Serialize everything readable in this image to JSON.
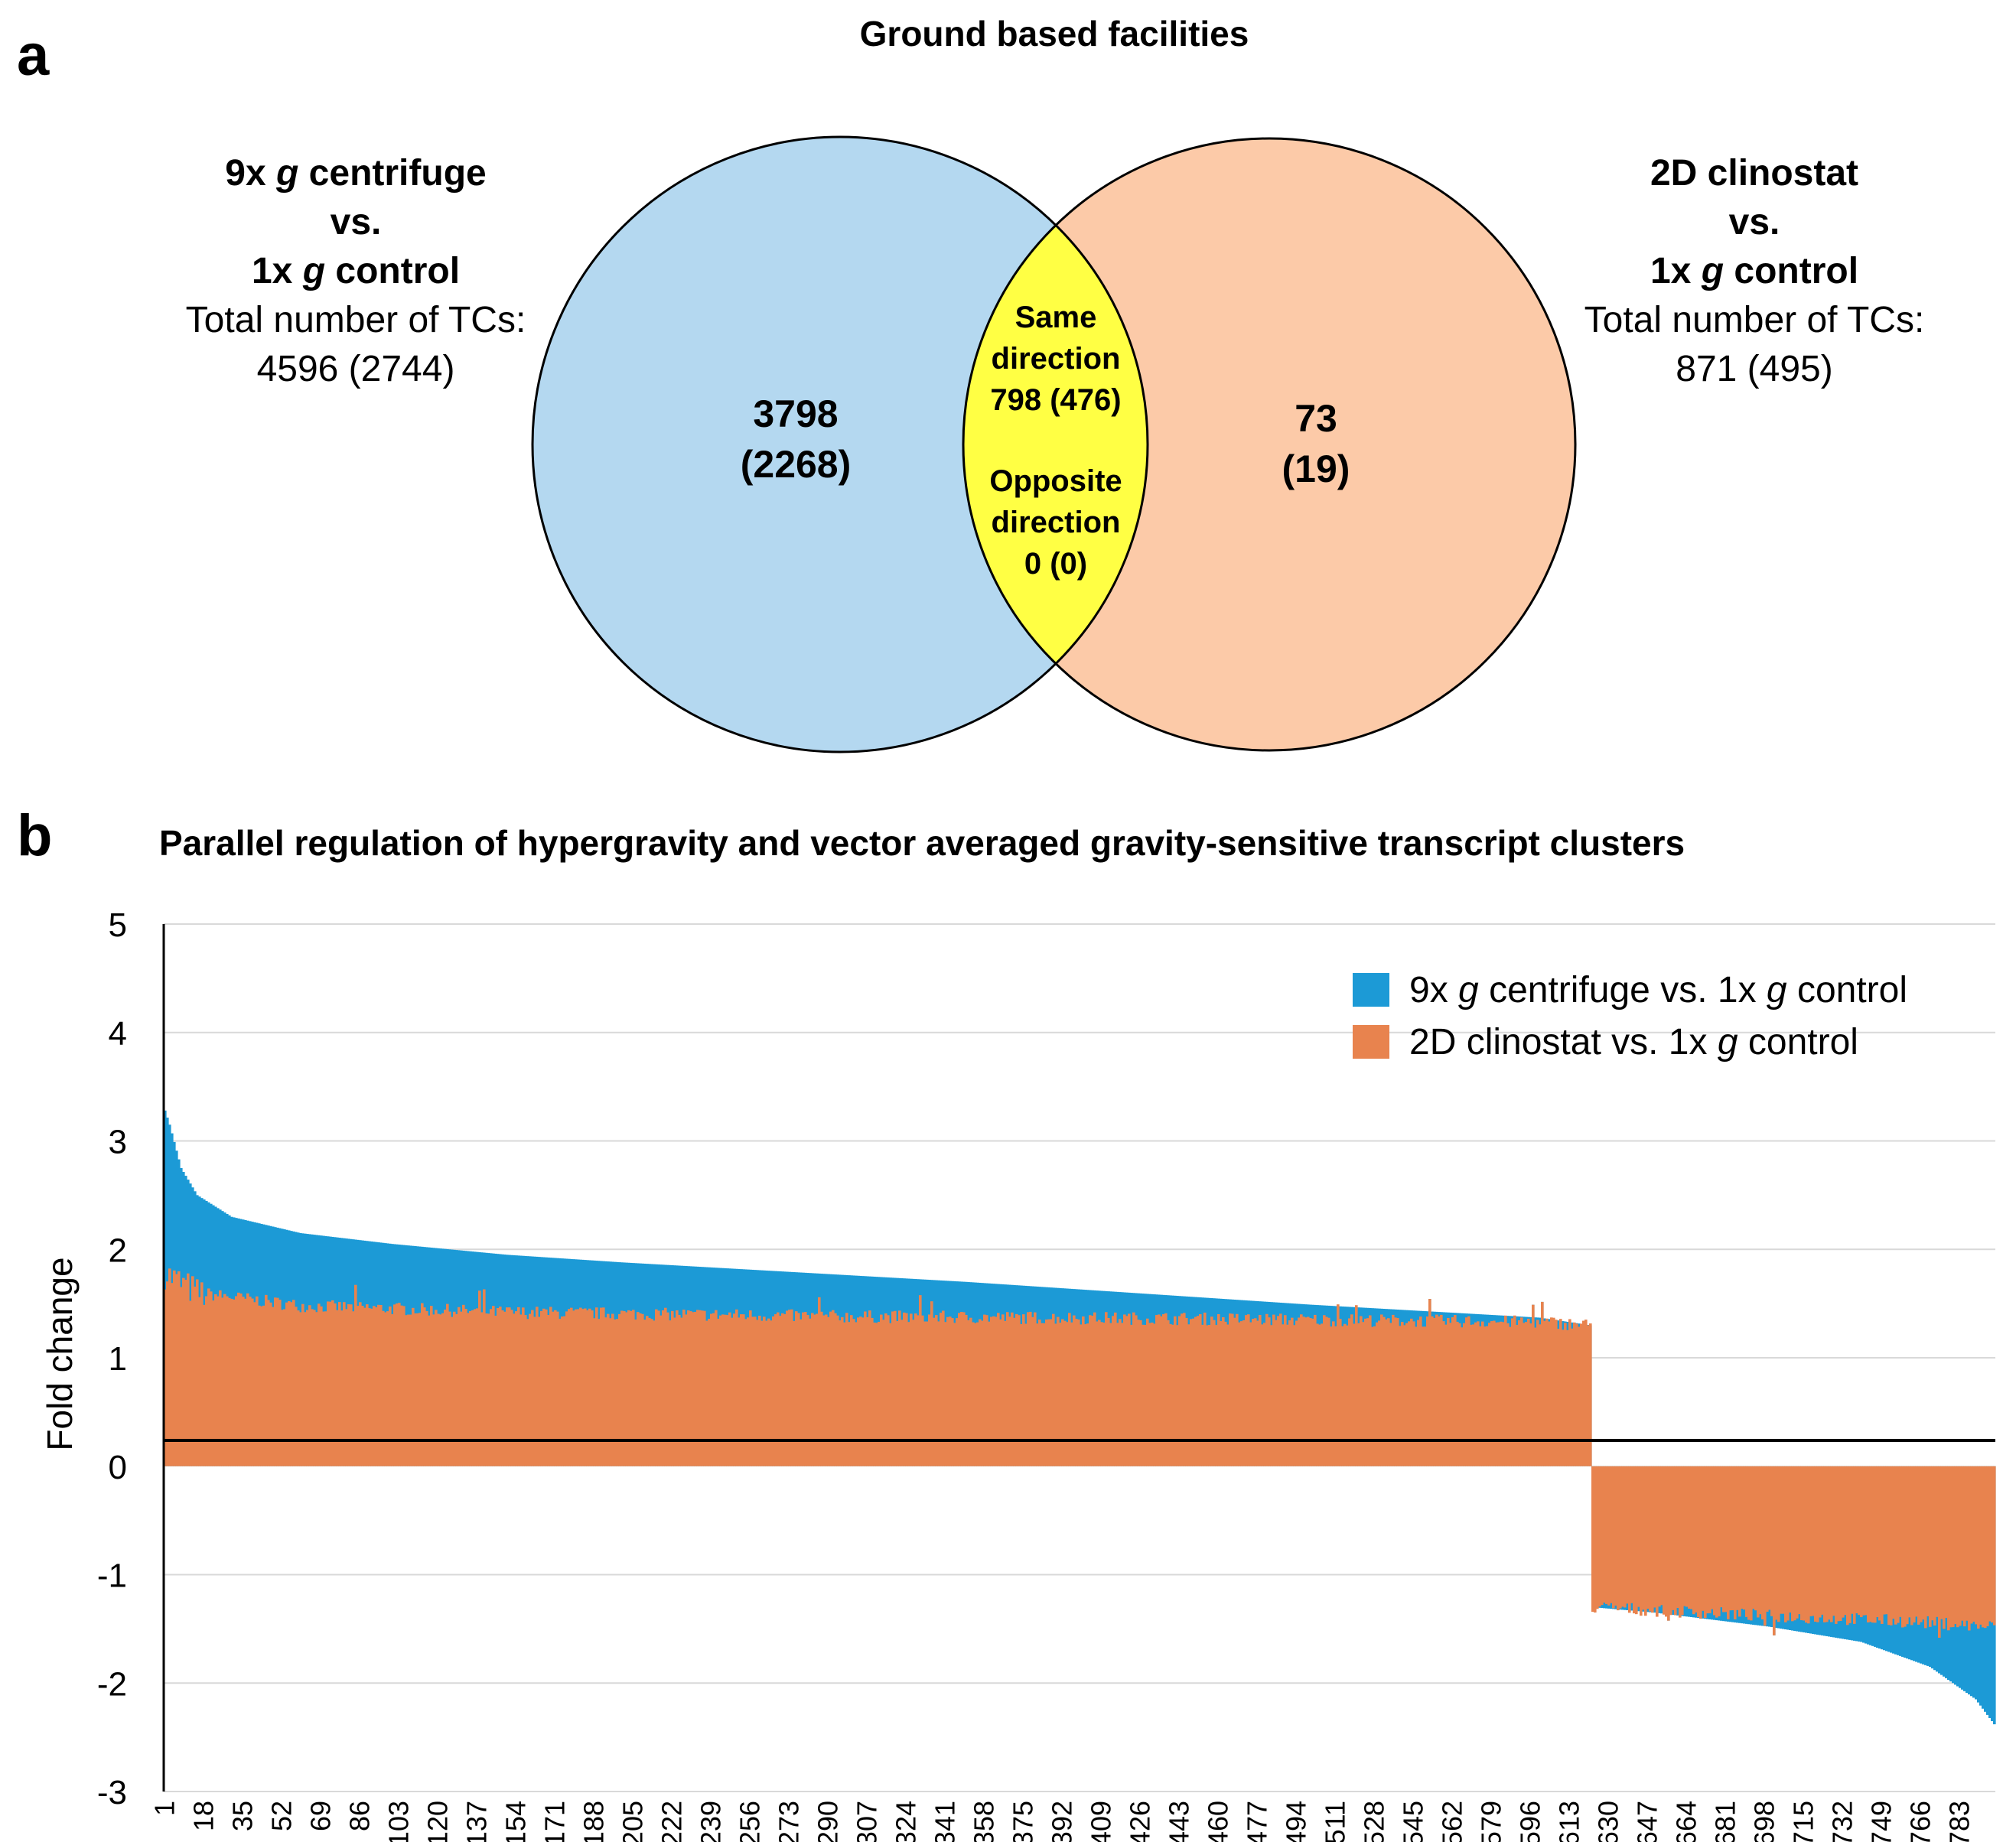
{
  "panel_a": {
    "letter": "a",
    "title": "Ground based facilities",
    "left_set": {
      "line1_pre": "9x ",
      "line1_g": "g",
      "line1_post": " centrifuge",
      "line2": "vs.",
      "line3_pre": "1x ",
      "line3_g": "g",
      "line3_post": " control",
      "total_label": "Total number of TCs:",
      "total_value": "4596 (2744)",
      "unique_count": "3798",
      "unique_count_paren": "(2268)",
      "color": "#b4d8f0"
    },
    "right_set": {
      "line1": "2D clinostat",
      "line2": "vs.",
      "line3_pre": "1x ",
      "line3_g": "g",
      "line3_post": " control",
      "total_label": "Total number of TCs:",
      "total_value": "871 (495)",
      "unique_count": "73",
      "unique_count_paren": "(19)",
      "color": "#fccaa8"
    },
    "overlap": {
      "same_line1": "Same",
      "same_line2": "direction",
      "same_value": "798 (476)",
      "opp_line1": "Opposite",
      "opp_line2": "direction",
      "opp_value": "0 (0)",
      "color": "#ffff44"
    }
  },
  "panel_b": {
    "letter": "b",
    "title": "Parallel regulation of hypergravity and vector averaged gravity-sensitive transcript clusters"
  },
  "chart_data": {
    "type": "bar",
    "title": "Parallel regulation of hypergravity and vector averaged gravity-sensitive transcript clusters",
    "xlabel": "",
    "ylabel": "Fold change",
    "ylim": [
      -3,
      5
    ],
    "yticks": [
      "5",
      "4",
      "3",
      "2",
      "1",
      "0",
      "-1",
      "-2",
      "-3"
    ],
    "n_bars": 798,
    "n_up": 622,
    "xtick_labels": [
      "1",
      "18",
      "35",
      "52",
      "69",
      "86",
      "103",
      "120",
      "137",
      "154",
      "171",
      "188",
      "205",
      "222",
      "239",
      "256",
      "273",
      "290",
      "307",
      "324",
      "341",
      "358",
      "375",
      "392",
      "409",
      "426",
      "443",
      "460",
      "477",
      "494",
      "511",
      "528",
      "545",
      "562",
      "579",
      "596",
      "613",
      "630",
      "647",
      "664",
      "681",
      "698",
      "715",
      "732",
      "749",
      "766",
      "783"
    ],
    "legend_position": "top-right",
    "series": [
      {
        "name": "9x g centrifuge vs. 1x g control",
        "legend_pre": "9x ",
        "legend_g": "g",
        "legend_mid": " centrifuge vs. 1x ",
        "legend_g2": "g",
        "legend_post": " control",
        "color": "#1c9ad6",
        "profile_up": [
          [
            1,
            3.28
          ],
          [
            3,
            3.15
          ],
          [
            8,
            2.75
          ],
          [
            15,
            2.5
          ],
          [
            30,
            2.3
          ],
          [
            60,
            2.15
          ],
          [
            100,
            2.05
          ],
          [
            150,
            1.95
          ],
          [
            200,
            1.88
          ],
          [
            250,
            1.82
          ],
          [
            300,
            1.76
          ],
          [
            350,
            1.7
          ],
          [
            400,
            1.63
          ],
          [
            450,
            1.56
          ],
          [
            500,
            1.49
          ],
          [
            550,
            1.43
          ],
          [
            600,
            1.37
          ],
          [
            622,
            1.3
          ]
        ],
        "profile_down": [
          [
            623,
            -1.3
          ],
          [
            650,
            -1.35
          ],
          [
            700,
            -1.48
          ],
          [
            740,
            -1.62
          ],
          [
            770,
            -1.85
          ],
          [
            790,
            -2.15
          ],
          [
            798,
            -2.38
          ]
        ]
      },
      {
        "name": "2D clinostat vs. 1x g control",
        "legend_pre": "2D clinostat vs. 1x ",
        "legend_g": "g",
        "legend_post": " control",
        "color": "#e8834e",
        "profile_up": [
          [
            1,
            1.78
          ],
          [
            15,
            1.6
          ],
          [
            60,
            1.48
          ],
          [
            150,
            1.42
          ],
          [
            300,
            1.38
          ],
          [
            450,
            1.36
          ],
          [
            600,
            1.33
          ],
          [
            622,
            1.3
          ]
        ],
        "profile_down": [
          [
            623,
            -1.3
          ],
          [
            700,
            -1.38
          ],
          [
            760,
            -1.43
          ],
          [
            798,
            -1.48
          ]
        ]
      }
    ]
  }
}
